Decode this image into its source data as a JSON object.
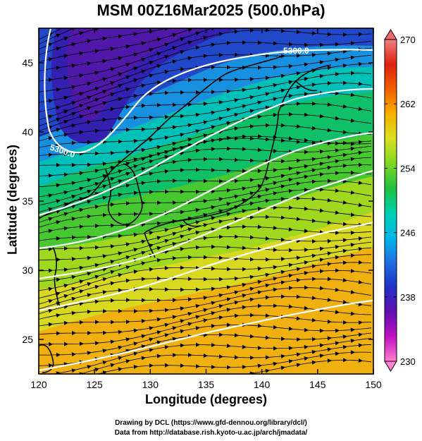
{
  "title": "MSM 00Z16Mar2025 (500.0hPa)",
  "xlabel": "Longitude (degrees)",
  "ylabel": "Latitude  (degrees)",
  "footer": {
    "line1": "Drawing by DCL (https://www.gfd-dennou.org/library/dcl/)",
    "line2": "Data from http://database.rish.kyoto-u.ac.jp/arch/jmadata/"
  },
  "map": {
    "lon_range": [
      120,
      150
    ],
    "lat_range": [
      22.5,
      47.5
    ],
    "x_ticks": [
      "120",
      "125",
      "130",
      "135",
      "140",
      "145",
      "150"
    ],
    "y_ticks": [
      "25",
      "30",
      "35",
      "40",
      "45"
    ],
    "contour_label": "5300.0",
    "colorbar": {
      "range": [
        230,
        270
      ],
      "tick_labels": [
        "230",
        "238",
        "246",
        "254",
        "262",
        "270"
      ],
      "tick_values": [
        230,
        238,
        246,
        254,
        262,
        270
      ],
      "colors": [
        "#ff7fd0",
        "#c010c0",
        "#6010b0",
        "#2030c8",
        "#2070e0",
        "#00b8e8",
        "#00d0b0",
        "#20c040",
        "#80d820",
        "#d8e020",
        "#f8b000",
        "#f06000",
        "#e02010",
        "#f08080"
      ]
    }
  }
}
